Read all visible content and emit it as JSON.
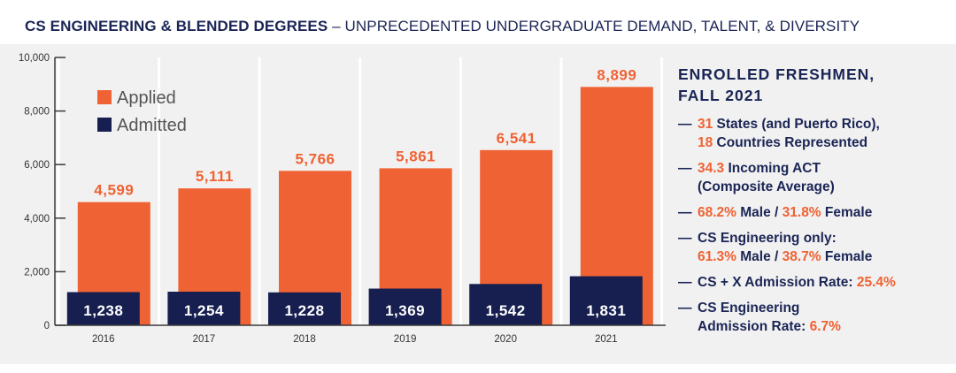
{
  "header": {
    "title_bold": "CS ENGINEERING & BLENDED DEGREES",
    "title_rest": " – UNPRECEDENTED UNDERGRADUATE DEMAND, TALENT, & DIVERSITY"
  },
  "colors": {
    "applied": "#ef6233",
    "admitted": "#161f50",
    "text_dark": "#1b2555",
    "panel_bg": "#f1f1f1"
  },
  "chart_data": {
    "type": "bar",
    "categories": [
      "2016",
      "2017",
      "2018",
      "2019",
      "2020",
      "2021"
    ],
    "series": [
      {
        "name": "Applied",
        "values": [
          4599,
          5111,
          5766,
          5861,
          6541,
          8899
        ]
      },
      {
        "name": "Admitted",
        "values": [
          1238,
          1254,
          1228,
          1369,
          1542,
          1831
        ]
      }
    ],
    "applied_labels": [
      "4,599",
      "5,111",
      "5,766",
      "5,861",
      "6,541",
      "8,899"
    ],
    "admitted_labels": [
      "1,238",
      "1,254",
      "1,228",
      "1,369",
      "1,542",
      "1,831"
    ],
    "yticks": [
      0,
      2000,
      4000,
      6000,
      8000,
      10000
    ],
    "ytick_labels": [
      "0",
      "2,000",
      "4,000",
      "6,000",
      "8,000",
      "10,000"
    ],
    "ylim": [
      0,
      10000
    ],
    "legend_position": "top-left",
    "title": "",
    "xlabel": "",
    "ylabel": ""
  },
  "side": {
    "heading_line1": "ENROLLED FRESHMEN,",
    "heading_line2": "FALL 2021",
    "dash": "—",
    "items": [
      {
        "v1": "31",
        "t1": " States (and Puerto Rico),",
        "v2": "18",
        "t2": " Countries Represented"
      },
      {
        "v1": "34.3",
        "t1": " Incoming ACT",
        "t2": "(Composite Average)"
      },
      {
        "v1": "68.2%",
        "t1": " Male / ",
        "v2": "31.8%",
        "t2": " Female"
      },
      {
        "t1": "CS Engineering only:",
        "v2": "61.3%",
        "t2": " Male / ",
        "v3": "38.7%",
        "t3": " Female"
      },
      {
        "t1": "CS + X Admission Rate: ",
        "v1": "25.4%"
      },
      {
        "t1": "CS Engineering",
        "t2": "Admission Rate: ",
        "v2": "6.7%"
      }
    ]
  }
}
